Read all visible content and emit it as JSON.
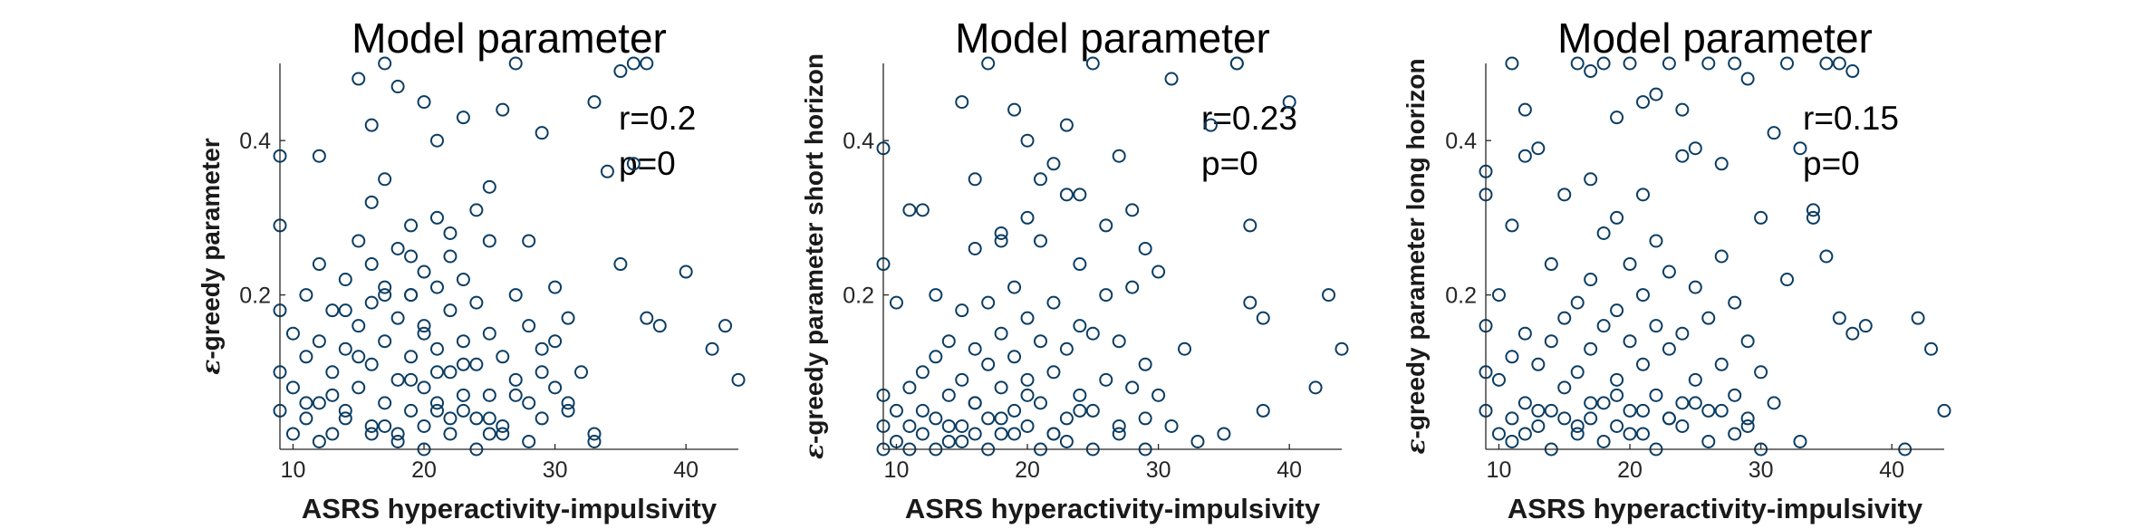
{
  "chart_data": [
    {
      "type": "scatter",
      "title": "Model parameter",
      "xlabel": "ASRS hyperactivity-impulsivity",
      "ylabel_symbol": "ε",
      "ylabel": "-greedy parameter",
      "xlim": [
        9,
        44
      ],
      "ylim": [
        0,
        0.5
      ],
      "xticks": [
        10,
        20,
        30,
        40
      ],
      "yticks": [
        0.2,
        0.4
      ],
      "marker_color": "#0b3d63",
      "annotation": {
        "r": "r=0.2",
        "p": "p=0"
      },
      "x": [
        9,
        9,
        9,
        9,
        9,
        10,
        10,
        10,
        11,
        11,
        11,
        12,
        12,
        12,
        12,
        13,
        13,
        13,
        14,
        14,
        14,
        15,
        15,
        15,
        16,
        16,
        16,
        16,
        17,
        17,
        17,
        17,
        18,
        18,
        18,
        18,
        19,
        19,
        19,
        19,
        20,
        20,
        20,
        20,
        21,
        21,
        21,
        21,
        22,
        22,
        22,
        22,
        23,
        23,
        23,
        24,
        24,
        24,
        25,
        25,
        25,
        26,
        26,
        27,
        27,
        28,
        28,
        29,
        29,
        30,
        30,
        31,
        31,
        32,
        33,
        34,
        35,
        36,
        37,
        38,
        40,
        42,
        43,
        44,
        15,
        16,
        17,
        18,
        19,
        20,
        21,
        22,
        23,
        24,
        25,
        26,
        27,
        28,
        29,
        30,
        13,
        14,
        16,
        18,
        20,
        22,
        24,
        26,
        28,
        35,
        36,
        37,
        21,
        23,
        25,
        11,
        12,
        15,
        17,
        19,
        21,
        23,
        25,
        27,
        29,
        31,
        33,
        33,
        16,
        19,
        14,
        17,
        20
      ],
      "y": [
        0.38,
        0.29,
        0.18,
        0.1,
        0.05,
        0.02,
        0.08,
        0.15,
        0.04,
        0.12,
        0.2,
        0.06,
        0.14,
        0.24,
        0.38,
        0.02,
        0.1,
        0.18,
        0.05,
        0.13,
        0.22,
        0.08,
        0.16,
        0.27,
        0.03,
        0.11,
        0.19,
        0.32,
        0.06,
        0.14,
        0.21,
        0.35,
        0.02,
        0.09,
        0.17,
        0.26,
        0.05,
        0.12,
        0.2,
        0.29,
        0.03,
        0.08,
        0.15,
        0.23,
        0.06,
        0.13,
        0.21,
        0.4,
        0.02,
        0.1,
        0.18,
        0.28,
        0.05,
        0.14,
        0.22,
        0.04,
        0.11,
        0.19,
        0.07,
        0.15,
        0.34,
        0.03,
        0.12,
        0.09,
        0.2,
        0.06,
        0.16,
        0.04,
        0.13,
        0.08,
        0.21,
        0.05,
        0.17,
        0.1,
        0.02,
        0.36,
        0.24,
        0.37,
        0.17,
        0.16,
        0.23,
        0.13,
        0.16,
        0.09,
        0.48,
        0.42,
        0.5,
        0.47,
        0.25,
        0.45,
        0.3,
        0.25,
        0.43,
        0.31,
        0.27,
        0.44,
        0.5,
        0.27,
        0.41,
        0.14,
        0.07,
        0.04,
        0.02,
        0.01,
        0.0,
        0.04,
        0.0,
        0.02,
        0.01,
        0.49,
        0.5,
        0.5,
        0.1,
        0.07,
        0.02,
        0.06,
        0.01,
        0.12,
        0.03,
        0.09,
        0.05,
        0.11,
        0.04,
        0.07,
        0.1,
        0.06,
        0.01,
        0.45,
        0.24,
        0.2,
        0.18,
        0.2,
        0.16
      ]
    },
    {
      "type": "scatter",
      "title": "Model parameter",
      "xlabel": "ASRS hyperactivity-impulsivity",
      "ylabel_symbol": "ε",
      "ylabel": "-greedy parameter short horizon",
      "xlim": [
        9,
        44
      ],
      "ylim": [
        0,
        0.5
      ],
      "xticks": [
        10,
        20,
        30,
        40
      ],
      "yticks": [
        0.2,
        0.4
      ],
      "marker_color": "#0b3d63",
      "annotation": {
        "r": "r=0.23",
        "p": "p=0"
      },
      "x": [
        9,
        9,
        9,
        9,
        9,
        10,
        10,
        10,
        11,
        11,
        11,
        12,
        12,
        12,
        13,
        13,
        13,
        14,
        14,
        14,
        15,
        15,
        15,
        16,
        16,
        16,
        16,
        17,
        17,
        17,
        18,
        18,
        18,
        18,
        19,
        19,
        19,
        20,
        20,
        20,
        20,
        21,
        21,
        21,
        22,
        22,
        22,
        23,
        23,
        23,
        24,
        24,
        24,
        25,
        25,
        26,
        26,
        27,
        27,
        28,
        28,
        29,
        29,
        30,
        31,
        32,
        33,
        34,
        35,
        36,
        37,
        38,
        40,
        42,
        43,
        44,
        15,
        17,
        19,
        21,
        23,
        25,
        27,
        29,
        31,
        16,
        18,
        20,
        22,
        24,
        26,
        28,
        30,
        36,
        37,
        38,
        11,
        13,
        15,
        17,
        19,
        21,
        23,
        25,
        27,
        29,
        12,
        14,
        16,
        18,
        20,
        22,
        24
      ],
      "y": [
        0.39,
        0.24,
        0.07,
        0.03,
        0.0,
        0.01,
        0.05,
        0.19,
        0.03,
        0.08,
        0.31,
        0.02,
        0.1,
        0.31,
        0.04,
        0.12,
        0.2,
        0.01,
        0.07,
        0.14,
        0.03,
        0.09,
        0.18,
        0.02,
        0.06,
        0.13,
        0.26,
        0.04,
        0.11,
        0.19,
        0.02,
        0.08,
        0.15,
        0.28,
        0.05,
        0.12,
        0.21,
        0.03,
        0.09,
        0.17,
        0.4,
        0.06,
        0.14,
        0.27,
        0.02,
        0.1,
        0.19,
        0.04,
        0.13,
        0.33,
        0.07,
        0.16,
        0.24,
        0.05,
        0.15,
        0.09,
        0.2,
        0.03,
        0.14,
        0.08,
        0.21,
        0.04,
        0.11,
        0.07,
        0.03,
        0.13,
        0.01,
        0.42,
        0.02,
        0.5,
        0.29,
        0.05,
        0.45,
        0.08,
        0.2,
        0.13,
        0.45,
        0.5,
        0.44,
        0.35,
        0.42,
        0.5,
        0.38,
        0.26,
        0.48,
        0.35,
        0.27,
        0.3,
        0.37,
        0.33,
        0.29,
        0.31,
        0.23,
        0.5,
        0.19,
        0.17,
        0.0,
        0.0,
        0.01,
        0.0,
        0.02,
        0.0,
        0.01,
        0.0,
        0.02,
        0.0,
        0.05,
        0.03,
        0.06,
        0.04,
        0.07,
        0.02,
        0.05
      ]
    },
    {
      "type": "scatter",
      "title": "Model parameter",
      "xlabel": "ASRS hyperactivity-impulsivity",
      "ylabel_symbol": "ε",
      "ylabel": "-greedy parameter long horizon",
      "xlim": [
        9,
        44
      ],
      "ylim": [
        0,
        0.5
      ],
      "xticks": [
        10,
        20,
        30,
        40
      ],
      "yticks": [
        0.2,
        0.4
      ],
      "marker_color": "#0b3d63",
      "annotation": {
        "r": "r=0.15",
        "p": "p=0"
      },
      "x": [
        9,
        9,
        9,
        9,
        9,
        10,
        10,
        10,
        11,
        11,
        11,
        11,
        12,
        12,
        12,
        13,
        13,
        13,
        14,
        14,
        14,
        15,
        15,
        15,
        16,
        16,
        16,
        17,
        17,
        17,
        17,
        18,
        18,
        18,
        19,
        19,
        19,
        19,
        20,
        20,
        20,
        21,
        21,
        21,
        21,
        22,
        22,
        22,
        23,
        23,
        23,
        24,
        24,
        24,
        25,
        25,
        26,
        26,
        27,
        27,
        28,
        28,
        29,
        29,
        30,
        31,
        32,
        33,
        34,
        35,
        36,
        37,
        38,
        42,
        43,
        44,
        16,
        17,
        18,
        19,
        20,
        21,
        22,
        23,
        24,
        25,
        26,
        27,
        28,
        29,
        30,
        31,
        32,
        33,
        34,
        35,
        36,
        37,
        11,
        12,
        14,
        16,
        18,
        20,
        22,
        24,
        26,
        28,
        30,
        13,
        15,
        17,
        19,
        21,
        23,
        25,
        27,
        29,
        12,
        41
      ],
      "y": [
        0.36,
        0.33,
        0.16,
        0.1,
        0.05,
        0.02,
        0.09,
        0.2,
        0.04,
        0.12,
        0.29,
        0.5,
        0.06,
        0.15,
        0.44,
        0.03,
        0.11,
        0.39,
        0.05,
        0.14,
        0.24,
        0.08,
        0.17,
        0.33,
        0.02,
        0.1,
        0.19,
        0.04,
        0.13,
        0.22,
        0.35,
        0.06,
        0.16,
        0.28,
        0.03,
        0.09,
        0.18,
        0.3,
        0.05,
        0.14,
        0.24,
        0.02,
        0.11,
        0.2,
        0.33,
        0.07,
        0.16,
        0.27,
        0.04,
        0.13,
        0.23,
        0.06,
        0.15,
        0.38,
        0.09,
        0.21,
        0.05,
        0.17,
        0.11,
        0.25,
        0.07,
        0.19,
        0.04,
        0.14,
        0.1,
        0.06,
        0.22,
        0.01,
        0.31,
        0.25,
        0.17,
        0.15,
        0.16,
        0.17,
        0.13,
        0.05,
        0.5,
        0.49,
        0.5,
        0.43,
        0.5,
        0.45,
        0.46,
        0.5,
        0.44,
        0.39,
        0.5,
        0.37,
        0.5,
        0.48,
        0.3,
        0.41,
        0.5,
        0.39,
        0.3,
        0.5,
        0.5,
        0.49,
        0.01,
        0.02,
        0.0,
        0.03,
        0.01,
        0.02,
        0.0,
        0.03,
        0.01,
        0.02,
        0.0,
        0.05,
        0.04,
        0.06,
        0.07,
        0.05,
        0.04,
        0.06,
        0.05,
        0.03,
        0.38,
        0.0
      ]
    }
  ]
}
